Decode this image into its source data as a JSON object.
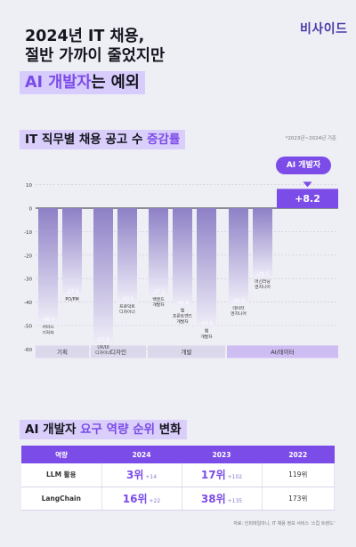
{
  "brand": "비사이드",
  "headline": {
    "line1": "2024년 IT 채용,",
    "line2": "절반 가까이 줄었지만",
    "line3_accent": "AI 개발자",
    "line3_rest": "는 예외"
  },
  "chart_section": {
    "title_prefix": "IT 직무별 채용 공고 수 ",
    "title_accent": "증감률",
    "note": "*2023년~2024년 기준",
    "badge": "AI 개발자"
  },
  "chart_data": {
    "type": "bar",
    "title": "IT 직무별 채용 공고 수 증감률",
    "ylim": [
      -70,
      10
    ],
    "yticks": [
      10,
      0,
      -10,
      -20,
      -30,
      -40,
      -50,
      -60
    ],
    "grid": true,
    "groups": [
      {
        "name": "기획",
        "bars": [
          {
            "label": "서비스 기획자",
            "value": -48.9
          },
          {
            "label": "PO/PM",
            "value": -37.1
          }
        ]
      },
      {
        "name": "디자인",
        "bars": [
          {
            "label": "UX/UI 디자이너",
            "value": -57.5
          },
          {
            "label": "프로덕트 디자이너",
            "value": -40.1
          }
        ]
      },
      {
        "name": "개발",
        "bars": [
          {
            "label": "백엔드 개발자",
            "value": -37.1
          },
          {
            "label": "웹 프론트엔드 개발자",
            "value": -41.8
          },
          {
            "label": "앱 개발자",
            "value": -50.6
          }
        ]
      },
      {
        "name": "AI/데이터",
        "bars": [
          {
            "label": "데이터 엔지니어",
            "value": -40.9
          },
          {
            "label": "머신러닝 엔지니어",
            "value": -29.5
          },
          {
            "label": "",
            "value": 8.2,
            "display": "+8.2"
          }
        ]
      }
    ]
  },
  "table_section": {
    "title_prefix": "AI 개발자 ",
    "title_accent": "요구 역량 순위",
    "title_suffix": " 변화"
  },
  "table": {
    "headers": [
      "역량",
      "2024",
      "2023",
      "2022"
    ],
    "rows": [
      {
        "skill": "LLM 활용",
        "r2024": "3위",
        "d2024": "+14",
        "r2023": "17위",
        "d2023": "+102",
        "r2022": "119위"
      },
      {
        "skill": "LangChain",
        "r2024": "16위",
        "d2024": "+22",
        "r2023": "38위",
        "d2023": "+135",
        "r2022": "173위"
      }
    ]
  },
  "footnote": "자료: 인피테일마니, IT 채용 정보 서비스 '스킵 트렌드'",
  "colors": {
    "accent": "#7b4ce8",
    "bar_top": "#8e80c6",
    "bar_bottom": "#ebe8f6",
    "category_bg": "#dcd8ec",
    "ai_category_bg": "#cdbdf2"
  }
}
